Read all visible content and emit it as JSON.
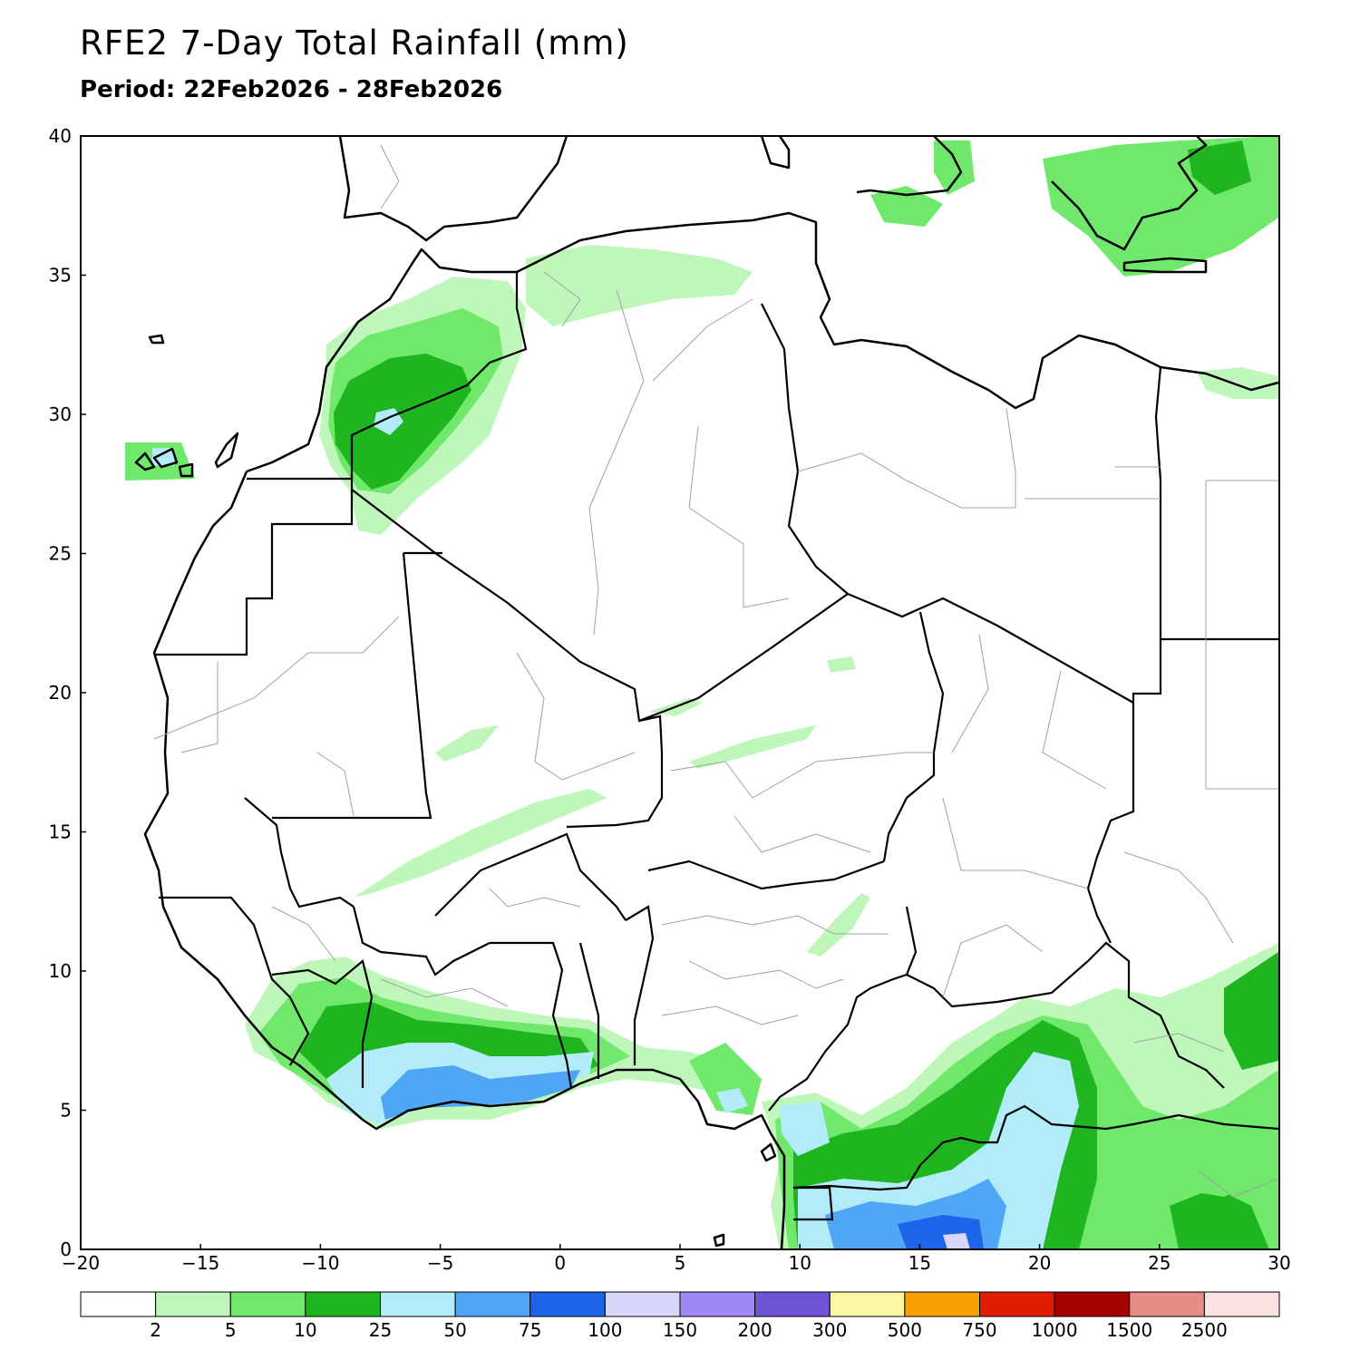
{
  "title": "RFE2 7-Day Total Rainfall (mm)",
  "subtitle": "Period: 22Feb2026 - 28Feb2026",
  "map": {
    "lon_range": [
      -20,
      30
    ],
    "lat_range": [
      0,
      40
    ],
    "x_ticks": [
      -20,
      -15,
      -10,
      -5,
      0,
      5,
      10,
      15,
      20,
      25,
      30
    ],
    "x_tick_labels": [
      "−20",
      "−15",
      "−10",
      "−5",
      "0",
      "5",
      "10",
      "15",
      "20",
      "25",
      "30"
    ],
    "y_ticks": [
      0,
      5,
      10,
      15,
      20,
      25,
      30,
      35,
      40
    ],
    "y_tick_labels": [
      "0",
      "5",
      "10",
      "15",
      "20",
      "25",
      "30",
      "35",
      "40"
    ]
  },
  "legend": {
    "colors": [
      "#ffffff",
      "#bff7bb",
      "#70e86b",
      "#1fb51f",
      "#b2ecfa",
      "#4fa6f5",
      "#1e64e8",
      "#d7d7fb",
      "#9f88f5",
      "#7054d8",
      "#fbf7a3",
      "#f7a000",
      "#e01d00",
      "#a30000",
      "#e68e85",
      "#fbe2e2"
    ],
    "labels": [
      "2",
      "5",
      "10",
      "25",
      "50",
      "75",
      "100",
      "150",
      "200",
      "300",
      "500",
      "750",
      "1000",
      "1500",
      "2500"
    ]
  },
  "rain_colors": {
    "c2": "#bff7bb",
    "c5": "#70e86b",
    "c10": "#1fb51f",
    "c25": "#b2ecfa",
    "c50": "#4fa6f5",
    "c75": "#1e64e8",
    "c100": "#d7d7fb"
  }
}
